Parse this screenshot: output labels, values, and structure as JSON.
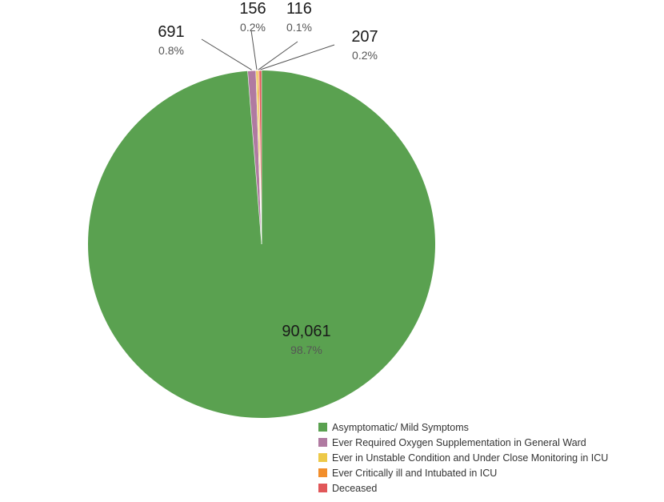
{
  "chart_data": {
    "type": "pie",
    "slices": [
      {
        "name": "Asymptomatic/ Mild Symptoms",
        "value": 90061,
        "value_label": "90,061",
        "percent_label": "98.7%",
        "color": "#5aa150"
      },
      {
        "name": "Ever Required Oxygen Supplementation in General Ward",
        "value": 691,
        "value_label": "691",
        "percent_label": "0.8%",
        "color": "#b07aa1"
      },
      {
        "name": "Ever in Unstable Condition and Under Close Monitoring in ICU",
        "value": 156,
        "value_label": "156",
        "percent_label": "0.2%",
        "color": "#edc948"
      },
      {
        "name": "Ever Critically ill and Intubated in ICU",
        "value": 116,
        "value_label": "116",
        "percent_label": "0.1%",
        "color": "#f28e2b"
      },
      {
        "name": "Deceased",
        "value": 207,
        "value_label": "207",
        "percent_label": "0.2%",
        "color": "#e15759"
      }
    ],
    "legend_position": "bottom-right"
  }
}
